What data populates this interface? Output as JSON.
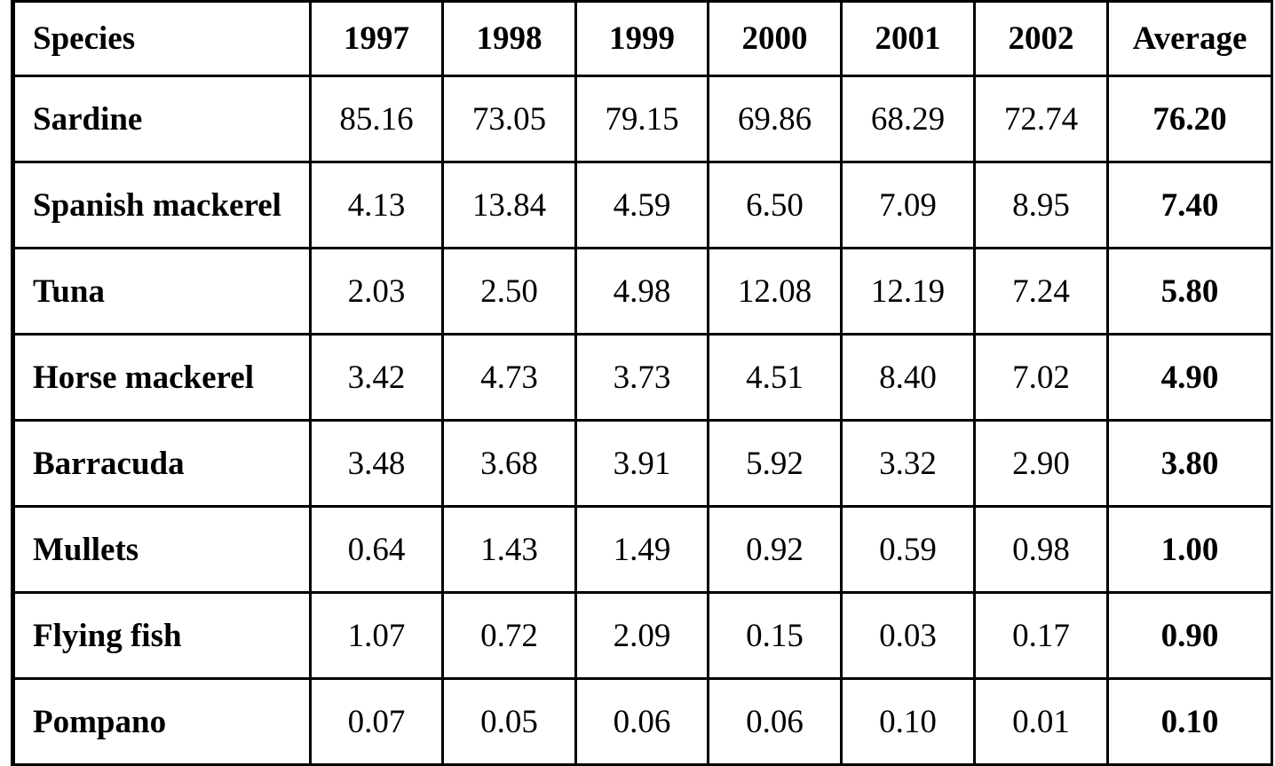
{
  "table": {
    "columns": [
      "Species",
      "1997",
      "1998",
      "1999",
      "2000",
      "2001",
      "2002",
      "Average"
    ],
    "rows": [
      [
        "Sardine",
        "85.16",
        "73.05",
        "79.15",
        "69.86",
        "68.29",
        "72.74",
        "76.20"
      ],
      [
        "Spanish mackerel",
        "4.13",
        "13.84",
        "4.59",
        "6.50",
        "7.09",
        "8.95",
        "7.40"
      ],
      [
        "Tuna",
        "2.03",
        "2.50",
        "4.98",
        "12.08",
        "12.19",
        "7.24",
        "5.80"
      ],
      [
        "Horse mackerel",
        "3.42",
        "4.73",
        "3.73",
        "4.51",
        "8.40",
        "7.02",
        "4.90"
      ],
      [
        "Barracuda",
        "3.48",
        "3.68",
        "3.91",
        "5.92",
        "3.32",
        "2.90",
        "3.80"
      ],
      [
        "Mullets",
        "0.64",
        "1.43",
        "1.49",
        "0.92",
        "0.59",
        "0.98",
        "1.00"
      ],
      [
        "Flying fish",
        "1.07",
        "0.72",
        "2.09",
        "0.15",
        "0.03",
        "0.17",
        "0.90"
      ],
      [
        "Pompano",
        "0.07",
        "0.05",
        "0.06",
        "0.06",
        "0.10",
        "0.01",
        "0.10"
      ]
    ]
  }
}
